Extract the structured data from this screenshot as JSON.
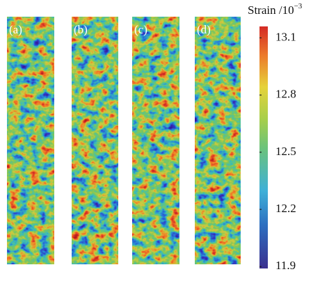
{
  "panels": [
    {
      "label": "(a)"
    },
    {
      "label": "(b)"
    },
    {
      "label": "(c)"
    },
    {
      "label": "(d)"
    }
  ],
  "colorbar": {
    "title": "Strain /10",
    "exponent": "−3",
    "lim": [
      11.89,
      13.16
    ],
    "ticks": [
      13.1,
      12.8,
      12.5,
      12.2,
      11.9
    ]
  }
}
